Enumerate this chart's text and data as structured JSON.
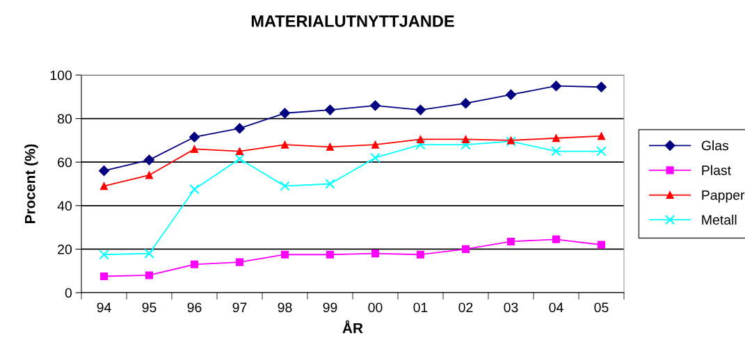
{
  "chart_data": {
    "type": "line",
    "title": "MATERIALUTNYTTJANDE",
    "xlabel": "ÅR",
    "ylabel": "Procent (%)",
    "categories": [
      "94",
      "95",
      "96",
      "97",
      "98",
      "99",
      "00",
      "01",
      "02",
      "03",
      "04",
      "05"
    ],
    "series": [
      {
        "name": "Glas",
        "color": "#000080",
        "marker": "diamond",
        "values": [
          56,
          61,
          71.5,
          75.5,
          82.5,
          84,
          86,
          84,
          87,
          91,
          95,
          94.5
        ]
      },
      {
        "name": "Plast",
        "color": "#ff00ff",
        "marker": "square",
        "values": [
          7.5,
          8,
          13,
          14,
          17.5,
          17.5,
          18,
          17.5,
          20,
          23.5,
          24.5,
          22
        ]
      },
      {
        "name": "Papper",
        "color": "#ff0000",
        "marker": "triangle",
        "values": [
          49,
          54,
          66,
          65,
          68,
          67,
          68,
          70.5,
          70.5,
          70,
          71,
          72
        ]
      },
      {
        "name": "Metall",
        "color": "#00ffff",
        "marker": "cross",
        "values": [
          17.5,
          18,
          47.5,
          61.5,
          49,
          50,
          62,
          68,
          68,
          69.5,
          65,
          65
        ]
      }
    ],
    "ylim": [
      0,
      100
    ],
    "yticks": [
      0,
      20,
      40,
      60,
      80,
      100
    ],
    "grid": "y",
    "legend": "right"
  }
}
